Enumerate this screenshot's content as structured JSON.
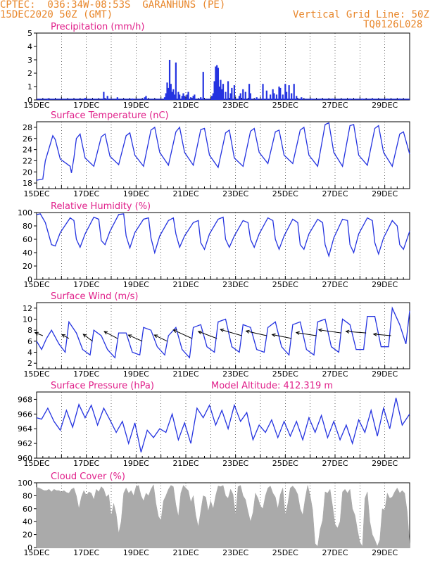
{
  "header": {
    "line1": "CPTEC:  036:34W-08:53S  GARANHUNS (PE)",
    "line2": "15DEC2020 50Z (GMT)",
    "grid_note": "Vertical Grid Line: 50Z",
    "code": "TQ0126L028"
  },
  "model_altitude": "Model Altitude: 412.319 m",
  "colors": {
    "header": "#e8862a",
    "title": "#e0208a",
    "line": "#2433e0",
    "fill": "#aaaaaa",
    "wind": "#000000"
  },
  "chart_data": [
    {
      "id": "precip",
      "type": "bar",
      "title": "Precipitation (mm/h)",
      "xlim": [
        0,
        15
      ],
      "ylim": [
        0,
        5
      ],
      "yticks": [
        0,
        1,
        2,
        3,
        4,
        5
      ],
      "xticks": [
        0,
        2,
        4,
        6,
        8,
        10,
        12,
        14
      ],
      "xticklabels": [
        "15DEC",
        "17DEC",
        "19DEC",
        "21DEC",
        "23DEC",
        "25DEC",
        "27DEC",
        "29DEC"
      ],
      "x": [
        0.45,
        1.95,
        2.7,
        2.85,
        3.25,
        3.85,
        4.35,
        4.4,
        5.15,
        5.2,
        5.25,
        5.3,
        5.35,
        5.4,
        5.45,
        5.5,
        5.55,
        5.6,
        5.7,
        5.75,
        5.85,
        5.9,
        5.95,
        6.05,
        6.1,
        6.2,
        6.3,
        6.35,
        6.6,
        6.7,
        7.05,
        7.1,
        7.15,
        7.2,
        7.25,
        7.3,
        7.35,
        7.4,
        7.45,
        7.5,
        7.6,
        7.7,
        7.8,
        7.85,
        7.95,
        8.15,
        8.2,
        8.3,
        8.4,
        8.55,
        8.6,
        8.85,
        9.1,
        9.25,
        9.4,
        9.5,
        9.55,
        9.65,
        9.75,
        9.8,
        9.9,
        10.0,
        10.05,
        10.15,
        10.25,
        10.35,
        10.45,
        10.65,
        11.05,
        11.45,
        11.9,
        12.6,
        13.1,
        13.5,
        14.1,
        14.6
      ],
      "values": [
        0.1,
        0.15,
        0.6,
        0.3,
        0.2,
        0.1,
        0.2,
        0.3,
        0.2,
        0.5,
        1.3,
        0.9,
        3.0,
        1.2,
        0.6,
        0.8,
        0.4,
        2.8,
        0.6,
        0.4,
        0.3,
        0.5,
        0.3,
        0.4,
        0.6,
        0.2,
        0.3,
        0.4,
        0.2,
        2.1,
        0.3,
        0.5,
        1.4,
        2.5,
        2.6,
        2.4,
        1.0,
        1.5,
        0.8,
        1.2,
        0.6,
        1.4,
        0.5,
        0.9,
        1.1,
        0.3,
        0.5,
        0.8,
        0.6,
        1.2,
        0.5,
        0.2,
        1.2,
        0.7,
        0.4,
        0.8,
        0.5,
        0.4,
        1.0,
        0.9,
        0.4,
        1.2,
        0.6,
        1.1,
        0.5,
        1.2,
        0.3,
        0.2,
        0.1,
        0.1,
        0.1,
        0.1,
        0.1,
        0.1,
        0.1,
        0.1
      ]
    },
    {
      "id": "temp",
      "type": "line",
      "title": "Surface Temperature (nC)",
      "xlim": [
        0,
        15
      ],
      "ylim": [
        17,
        29
      ],
      "yticks": [
        18,
        20,
        22,
        24,
        26,
        28
      ],
      "xticks": [
        0,
        2,
        4,
        6,
        8,
        10,
        12,
        14
      ],
      "xticklabels": [
        "15DEC",
        "17DEC",
        "19DEC",
        "21DEC",
        "23DEC",
        "25DEC",
        "27DEC",
        "29DEC"
      ],
      "x": [
        0.0,
        0.25,
        0.35,
        0.65,
        0.75,
        0.95,
        1.35,
        1.4,
        1.5,
        1.6,
        1.75,
        1.95,
        2.3,
        2.6,
        2.75,
        2.95,
        3.3,
        3.6,
        3.75,
        3.95,
        4.3,
        4.6,
        4.75,
        4.95,
        5.3,
        5.6,
        5.75,
        5.95,
        6.3,
        6.6,
        6.75,
        6.95,
        7.3,
        7.6,
        7.75,
        7.95,
        8.3,
        8.6,
        8.75,
        8.95,
        9.3,
        9.6,
        9.75,
        9.95,
        10.3,
        10.6,
        10.75,
        10.95,
        11.3,
        11.6,
        11.75,
        11.95,
        12.3,
        12.6,
        12.75,
        12.95,
        13.3,
        13.6,
        13.75,
        13.95,
        14.3,
        14.6,
        14.75,
        15.0
      ],
      "values": [
        18.5,
        18.7,
        22.0,
        26.5,
        25.8,
        22.3,
        21.0,
        19.8,
        22.5,
        26.0,
        26.8,
        22.5,
        21.0,
        26.3,
        26.8,
        22.8,
        21.3,
        26.5,
        27.0,
        23.0,
        21.0,
        27.5,
        28.0,
        23.5,
        21.2,
        27.2,
        28.0,
        23.5,
        21.2,
        27.6,
        27.8,
        23.0,
        20.8,
        27.0,
        27.5,
        22.5,
        21.0,
        27.3,
        27.8,
        23.5,
        21.5,
        27.2,
        27.5,
        23.0,
        21.5,
        27.5,
        28.0,
        23.0,
        21.0,
        28.5,
        28.8,
        23.5,
        21.0,
        28.3,
        28.5,
        23.0,
        21.2,
        27.8,
        28.3,
        23.5,
        21.0,
        26.8,
        27.2,
        23.2
      ]
    },
    {
      "id": "rh",
      "type": "line",
      "title": "Relative Humidity (%)",
      "xlim": [
        0,
        15
      ],
      "ylim": [
        0,
        100
      ],
      "yticks": [
        0,
        20,
        40,
        60,
        80,
        100
      ],
      "xticks": [
        0,
        2,
        4,
        6,
        8,
        10,
        12,
        14
      ],
      "xticklabels": [
        "15DEC",
        "17DEC",
        "19DEC",
        "21DEC",
        "23DEC",
        "25DEC",
        "27DEC",
        "29DEC"
      ],
      "x": [
        0.0,
        0.15,
        0.35,
        0.6,
        0.75,
        0.95,
        1.35,
        1.5,
        1.6,
        1.75,
        1.95,
        2.3,
        2.5,
        2.6,
        2.75,
        2.95,
        3.3,
        3.5,
        3.6,
        3.75,
        3.95,
        4.3,
        4.5,
        4.6,
        4.75,
        4.95,
        5.3,
        5.5,
        5.6,
        5.75,
        5.95,
        6.3,
        6.5,
        6.6,
        6.75,
        6.95,
        7.3,
        7.5,
        7.6,
        7.75,
        7.95,
        8.3,
        8.5,
        8.6,
        8.75,
        8.95,
        9.3,
        9.5,
        9.6,
        9.75,
        9.95,
        10.3,
        10.5,
        10.6,
        10.75,
        10.95,
        11.3,
        11.5,
        11.6,
        11.75,
        11.95,
        12.3,
        12.5,
        12.6,
        12.75,
        12.95,
        13.3,
        13.5,
        13.6,
        13.75,
        13.95,
        14.3,
        14.5,
        14.6,
        14.75,
        15.0
      ],
      "values": [
        97,
        98,
        85,
        52,
        50,
        70,
        92,
        88,
        60,
        48,
        68,
        93,
        90,
        58,
        52,
        72,
        97,
        98,
        65,
        47,
        70,
        90,
        92,
        62,
        40,
        65,
        88,
        92,
        68,
        48,
        65,
        85,
        88,
        55,
        45,
        68,
        90,
        93,
        60,
        48,
        65,
        88,
        85,
        60,
        48,
        68,
        92,
        88,
        60,
        45,
        65,
        90,
        85,
        52,
        45,
        68,
        90,
        85,
        52,
        35,
        62,
        90,
        88,
        52,
        40,
        68,
        92,
        88,
        55,
        38,
        62,
        88,
        80,
        52,
        45,
        72
      ]
    },
    {
      "id": "wind",
      "type": "line",
      "title": "Surface Wind (m/s)",
      "xlim": [
        0,
        15
      ],
      "ylim": [
        1,
        13
      ],
      "yticks": [
        2,
        4,
        6,
        8,
        10,
        12
      ],
      "xticks": [
        0,
        2,
        4,
        6,
        8,
        10,
        12,
        14
      ],
      "xticklabels": [
        "15DEC",
        "17DEC",
        "19DEC",
        "21DEC",
        "23DEC",
        "25DEC",
        "27DEC",
        "29DEC"
      ],
      "x": [
        0.0,
        0.2,
        0.4,
        0.6,
        0.9,
        1.15,
        1.3,
        1.6,
        1.85,
        2.15,
        2.3,
        2.6,
        2.85,
        3.15,
        3.3,
        3.6,
        3.85,
        4.15,
        4.3,
        4.6,
        4.85,
        5.15,
        5.3,
        5.6,
        5.85,
        6.15,
        6.3,
        6.6,
        6.85,
        7.15,
        7.3,
        7.6,
        7.85,
        8.15,
        8.3,
        8.6,
        8.85,
        9.15,
        9.3,
        9.6,
        9.85,
        10.15,
        10.3,
        10.6,
        10.85,
        11.15,
        11.3,
        11.6,
        11.85,
        12.15,
        12.3,
        12.6,
        12.85,
        13.15,
        13.3,
        13.6,
        13.85,
        14.15,
        14.3,
        14.6,
        14.85,
        15.0
      ],
      "values": [
        6.0,
        4.5,
        6.5,
        8.0,
        5.5,
        4.0,
        9.5,
        7.5,
        4.5,
        3.5,
        8.0,
        7.0,
        4.5,
        3.0,
        7.5,
        7.5,
        4.0,
        3.5,
        8.5,
        8.0,
        5.0,
        3.5,
        7.0,
        8.5,
        4.5,
        3.0,
        8.5,
        9.0,
        5.0,
        4.0,
        9.5,
        10.0,
        5.0,
        4.0,
        9.0,
        8.5,
        4.5,
        4.0,
        8.5,
        9.5,
        5.0,
        3.5,
        9.0,
        9.5,
        4.5,
        3.5,
        9.5,
        10.0,
        5.0,
        4.0,
        10.0,
        9.0,
        4.5,
        4.5,
        10.5,
        10.5,
        5.0,
        5.0,
        12.0,
        9.0,
        5.5,
        11.5
      ],
      "vectors": {
        "x": [
          0.25,
          1.3,
          2.25,
          3.25,
          4.25,
          5.25,
          6.25,
          7.25,
          8.25,
          9.25,
          10.25,
          11.25,
          12.25,
          13.25,
          14.25
        ],
        "speed": [
          7.0,
          6.5,
          6.0,
          6.5,
          6.0,
          6.0,
          6.5,
          6.5,
          7.0,
          7.0,
          6.5,
          7.0,
          7.5,
          7.5,
          7.0
        ],
        "dx": [
          -20,
          -18,
          -24,
          -34,
          -36,
          -33,
          -48,
          -48,
          -55,
          -53,
          -50,
          -52,
          -58,
          -52,
          -45
        ],
        "dy": [
          -8,
          -10,
          -18,
          -18,
          -16,
          -16,
          -22,
          -18,
          -16,
          -12,
          -10,
          -8,
          -8,
          -4,
          -4
        ]
      }
    },
    {
      "id": "press",
      "type": "line",
      "title": "Surface Pressure (hPa)",
      "xlim": [
        0,
        15
      ],
      "ylim": [
        960,
        969
      ],
      "yticks": [
        960,
        962,
        964,
        966,
        968
      ],
      "xticks": [
        0,
        2,
        4,
        6,
        8,
        10,
        12,
        14
      ],
      "xticklabels": [
        "15DEC",
        "17DEC",
        "19DEC",
        "21DEC",
        "23DEC",
        "25DEC",
        "27DEC",
        "29DEC"
      ],
      "x": [
        0.0,
        0.2,
        0.45,
        0.7,
        0.95,
        1.2,
        1.45,
        1.7,
        1.95,
        2.2,
        2.45,
        2.7,
        2.95,
        3.2,
        3.45,
        3.7,
        3.95,
        4.2,
        4.45,
        4.7,
        4.95,
        5.2,
        5.45,
        5.7,
        5.95,
        6.2,
        6.45,
        6.7,
        6.95,
        7.2,
        7.45,
        7.7,
        7.95,
        8.2,
        8.45,
        8.7,
        8.95,
        9.2,
        9.45,
        9.7,
        9.95,
        10.2,
        10.45,
        10.7,
        10.95,
        11.2,
        11.45,
        11.7,
        11.95,
        12.2,
        12.45,
        12.7,
        12.95,
        13.2,
        13.45,
        13.7,
        13.95,
        14.2,
        14.45,
        14.7,
        15.0
      ],
      "values": [
        965.5,
        965.3,
        966.8,
        965.0,
        963.8,
        966.5,
        964.2,
        967.3,
        965.5,
        967.2,
        964.5,
        966.8,
        965.2,
        963.5,
        965.0,
        962.0,
        964.8,
        960.8,
        963.8,
        962.8,
        964.0,
        963.5,
        966.0,
        962.5,
        964.8,
        962.0,
        966.8,
        965.5,
        967.2,
        964.5,
        966.5,
        964.0,
        967.2,
        965.0,
        966.2,
        962.5,
        964.5,
        963.5,
        965.2,
        962.8,
        965.0,
        963.0,
        965.0,
        962.5,
        965.5,
        963.5,
        965.8,
        962.8,
        965.0,
        962.5,
        964.5,
        962.0,
        965.2,
        963.5,
        966.5,
        963.0,
        966.8,
        964.0,
        968.2,
        964.5,
        966.0
      ]
    },
    {
      "id": "cloud",
      "type": "area",
      "title": "Cloud Cover (%)",
      "xlim": [
        0,
        15
      ],
      "ylim": [
        0,
        100
      ],
      "yticks": [
        0,
        20,
        40,
        60,
        80,
        100
      ],
      "xticks": [
        0,
        2,
        4,
        6,
        8,
        10,
        12,
        14
      ],
      "xticklabels": [
        "15DEC",
        "17DEC",
        "19DEC",
        "21DEC",
        "23DEC",
        "25DEC",
        "27DEC",
        "29DEC"
      ],
      "x": [
        0.0,
        0.1,
        0.2,
        0.3,
        0.4,
        0.5,
        0.6,
        0.7,
        0.8,
        0.9,
        1.0,
        1.1,
        1.2,
        1.3,
        1.4,
        1.5,
        1.6,
        1.7,
        1.8,
        1.9,
        2.0,
        2.1,
        2.2,
        2.3,
        2.4,
        2.5,
        2.6,
        2.7,
        2.8,
        2.9,
        3.0,
        3.1,
        3.2,
        3.3,
        3.4,
        3.5,
        3.6,
        3.7,
        3.8,
        3.9,
        4.0,
        4.1,
        4.2,
        4.3,
        4.4,
        4.5,
        4.6,
        4.7,
        4.8,
        4.9,
        5.0,
        5.1,
        5.2,
        5.3,
        5.4,
        5.5,
        5.6,
        5.7,
        5.8,
        5.9,
        6.0,
        6.1,
        6.2,
        6.3,
        6.4,
        6.5,
        6.6,
        6.7,
        6.8,
        6.9,
        7.0,
        7.1,
        7.2,
        7.3,
        7.4,
        7.5,
        7.6,
        7.7,
        7.8,
        7.9,
        8.0,
        8.1,
        8.2,
        8.3,
        8.4,
        8.5,
        8.6,
        8.7,
        8.8,
        8.9,
        9.0,
        9.1,
        9.2,
        9.3,
        9.4,
        9.5,
        9.6,
        9.7,
        9.8,
        9.9,
        10.0,
        10.1,
        10.2,
        10.3,
        10.4,
        10.5,
        10.6,
        10.7,
        10.8,
        10.9,
        11.0,
        11.1,
        11.2,
        11.3,
        11.4,
        11.5,
        11.6,
        11.7,
        11.8,
        11.9,
        12.0,
        12.1,
        12.2,
        12.3,
        12.4,
        12.5,
        12.6,
        12.7,
        12.8,
        12.9,
        13.0,
        13.1,
        13.2,
        13.3,
        13.4,
        13.5,
        13.6,
        13.7,
        13.8,
        13.9,
        14.0,
        14.1,
        14.2,
        14.3,
        14.4,
        14.5,
        14.6,
        14.7,
        14.8,
        14.9,
        15.0
      ],
      "values": [
        93,
        92,
        90,
        88,
        88,
        90,
        86,
        90,
        88,
        88,
        86,
        88,
        85,
        84,
        90,
        92,
        80,
        60,
        78,
        88,
        80,
        86,
        84,
        74,
        90,
        86,
        94,
        90,
        78,
        82,
        48,
        68,
        52,
        22,
        40,
        84,
        92,
        84,
        88,
        80,
        94,
        96,
        80,
        72,
        84,
        80,
        90,
        97,
        68,
        48,
        42,
        72,
        80,
        90,
        96,
        94,
        66,
        48,
        84,
        96,
        92,
        88,
        70,
        80,
        50,
        32,
        56,
        80,
        78,
        56,
        72,
        60,
        80,
        95,
        94,
        96,
        80,
        76,
        90,
        82,
        50,
        94,
        96,
        80,
        74,
        56,
        40,
        54,
        84,
        76,
        64,
        60,
        80,
        92,
        95,
        84,
        78,
        60,
        82,
        92,
        50,
        68,
        92,
        95,
        90,
        82,
        60,
        50,
        76,
        96,
        80,
        58,
        6,
        2,
        28,
        42,
        86,
        84,
        90,
        64,
        36,
        30,
        40,
        86,
        90,
        84,
        90,
        60,
        50,
        28,
        8,
        2,
        76,
        86,
        40,
        20,
        12,
        2,
        12,
        60,
        58,
        84,
        76,
        78,
        86,
        92,
        84,
        88,
        84,
        56,
        6
      ]
    }
  ]
}
